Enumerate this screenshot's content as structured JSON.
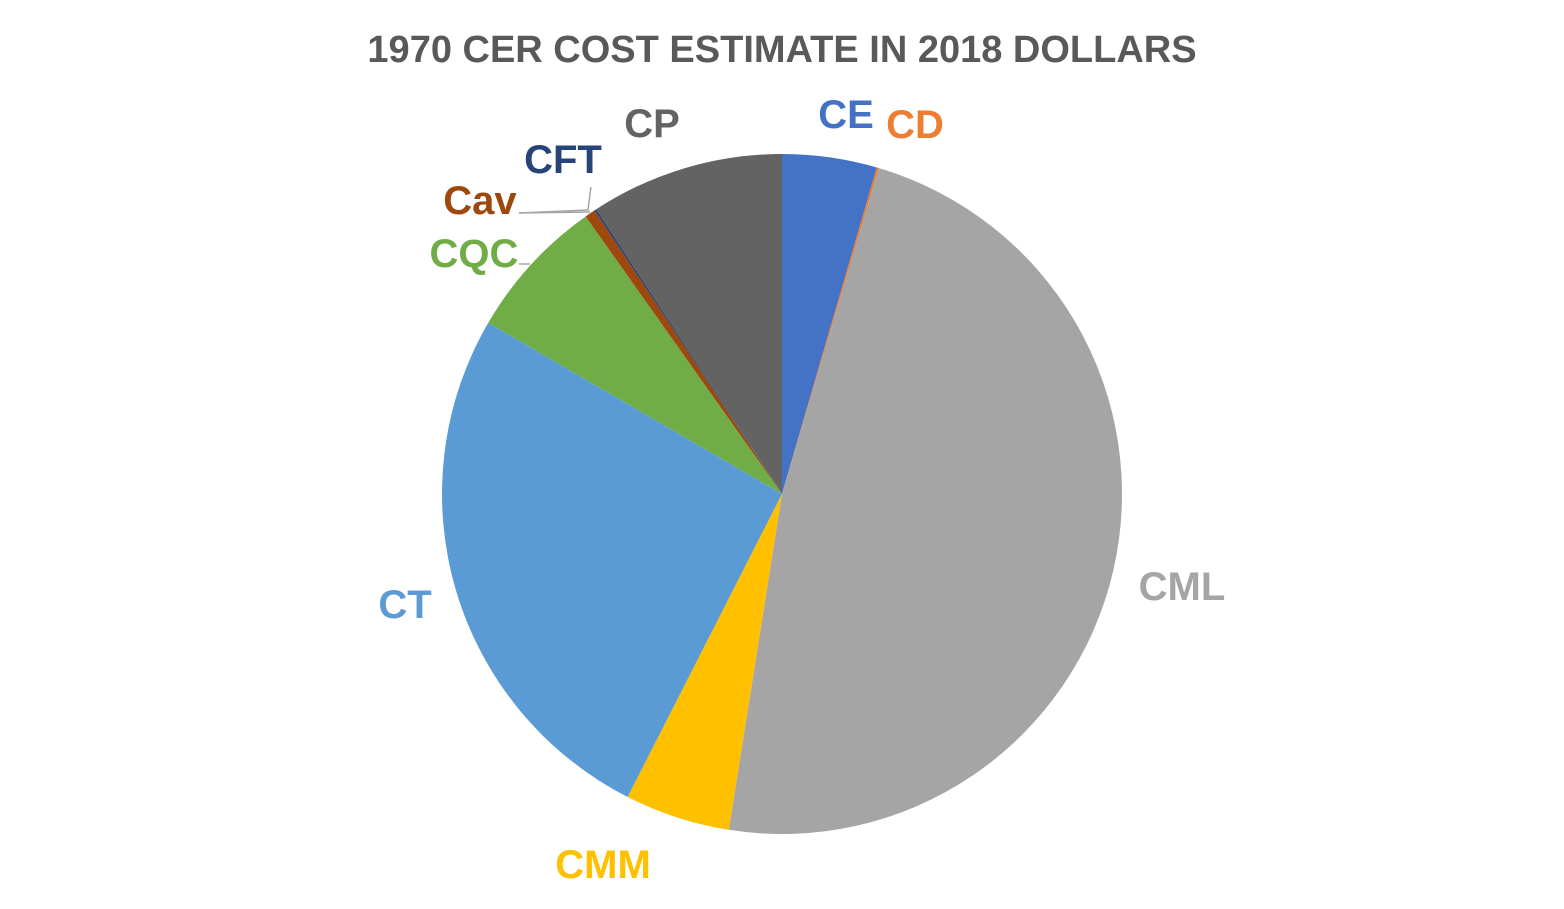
{
  "chart_data": {
    "type": "pie",
    "title": "1970 CER COST ESTIMATE IN 2018 DOLLARS",
    "start_angle_deg": 0,
    "direction": "clockwise",
    "slices": [
      {
        "label": "CE",
        "value": 4.5,
        "color": "#4472c4"
      },
      {
        "label": "CD",
        "value": 0.1,
        "color": "#ed7d31"
      },
      {
        "label": "CML",
        "value": 47.9,
        "color": "#a5a5a5"
      },
      {
        "label": "CMM",
        "value": 5.0,
        "color": "#ffc000"
      },
      {
        "label": "CT",
        "value": 25.9,
        "color": "#5b9bd5"
      },
      {
        "label": "CQC",
        "value": 6.8,
        "color": "#70ad47"
      },
      {
        "label": "Cav",
        "value": 0.5,
        "color": "#9e480e"
      },
      {
        "label": "CFT",
        "value": 0.1,
        "color": "#264478"
      },
      {
        "label": "CP",
        "value": 9.2,
        "color": "#636363"
      }
    ]
  }
}
